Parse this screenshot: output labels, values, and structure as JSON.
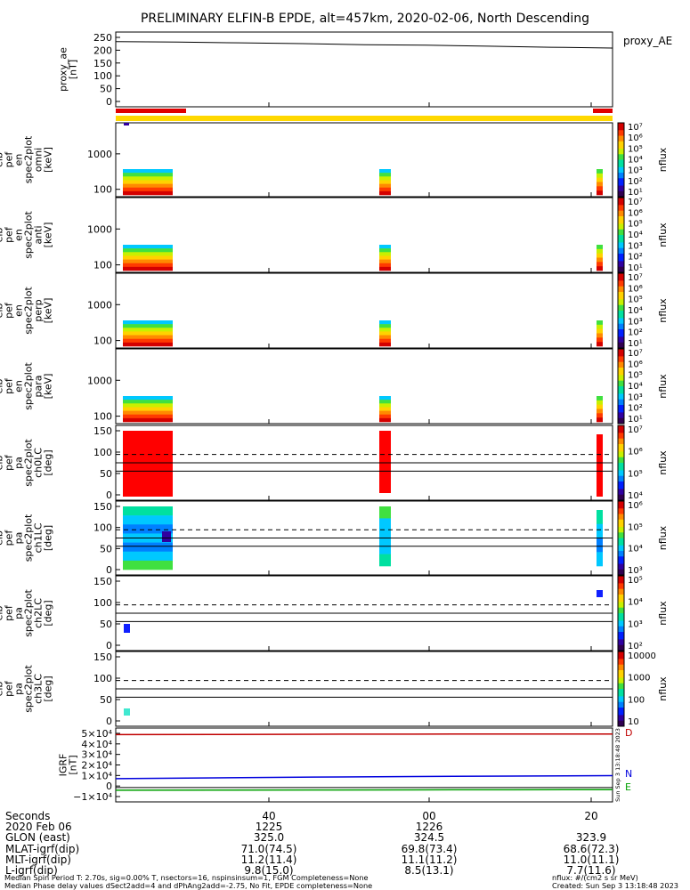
{
  "title": "PRELIMINARY ELFIN-B EPDE, alt=457km, 2020-02-06, North Descending",
  "chart_data": {
    "type": "heatmap",
    "panels": [
      {
        "id": "proxy_ae",
        "type": "line",
        "ylabel": [
          "proxy_ae",
          "[nT]"
        ],
        "legend": "proxy_AE",
        "yticks": [
          "250",
          "200",
          "150",
          "100",
          "50",
          "0"
        ],
        "ylim": [
          -25,
          265
        ],
        "series": [
          {
            "values": [
              228,
              226,
              223,
              220,
              216,
              214,
              210,
              206,
              203
            ]
          }
        ]
      },
      {
        "id": "spec_omni",
        "type": "spectrogram",
        "ylabel": [
          "elb",
          "pef",
          "en",
          "spec2plot",
          "omni",
          "[keV]"
        ],
        "yticks": [
          "1000",
          "100"
        ],
        "zlabel": "nflux",
        "zticks": [
          "10⁷",
          "10⁶",
          "10⁵",
          "10⁴",
          "10³",
          "10²",
          "10¹"
        ]
      },
      {
        "id": "spec_anti",
        "type": "spectrogram",
        "ylabel": [
          "elb",
          "pef",
          "en",
          "spec2plot",
          "anti",
          "[keV]"
        ],
        "yticks": [
          "1000",
          "100"
        ],
        "zlabel": "nflux",
        "zticks": [
          "10⁷",
          "10⁶",
          "10⁵",
          "10⁴",
          "10³",
          "10²",
          "10¹"
        ]
      },
      {
        "id": "spec_perp",
        "type": "spectrogram",
        "ylabel": [
          "elb",
          "pef",
          "en",
          "spec2plot",
          "perp",
          "[keV]"
        ],
        "yticks": [
          "1000",
          "100"
        ],
        "zlabel": "nflux",
        "zticks": [
          "10⁷",
          "10⁶",
          "10⁵",
          "10⁴",
          "10³",
          "10²",
          "10¹"
        ]
      },
      {
        "id": "spec_para",
        "type": "spectrogram",
        "ylabel": [
          "elb",
          "pef",
          "en",
          "spec2plot",
          "para",
          "[keV]"
        ],
        "yticks": [
          "1000",
          "100"
        ],
        "zlabel": "nflux",
        "zticks": [
          "10⁷",
          "10⁶",
          "10⁵",
          "10⁴",
          "10³",
          "10²",
          "10¹"
        ]
      },
      {
        "id": "pa_ch0",
        "type": "spectrogram",
        "ylabel": [
          "elb",
          "pef",
          "pa",
          "spec2plot",
          "ch0LC",
          "[deg]"
        ],
        "yticks": [
          "150",
          "100",
          "50",
          "0"
        ],
        "ylim": [
          0,
          180
        ],
        "zlabel": "nflux",
        "zticks": [
          "10⁷",
          "10⁶",
          "10⁵",
          "10⁴"
        ]
      },
      {
        "id": "pa_ch1",
        "type": "spectrogram",
        "ylabel": [
          "elb",
          "pef",
          "pa",
          "spec2plot",
          "ch1LC",
          "[deg]"
        ],
        "yticks": [
          "150",
          "100",
          "50",
          "0"
        ],
        "ylim": [
          0,
          180
        ],
        "zlabel": "nflux",
        "zticks": [
          "10⁶",
          "10⁵",
          "10⁴",
          "10³"
        ]
      },
      {
        "id": "pa_ch2",
        "type": "spectrogram",
        "ylabel": [
          "elb",
          "pef",
          "pa",
          "spec2plot",
          "ch2LC",
          "[deg]"
        ],
        "yticks": [
          "150",
          "100",
          "50",
          "0"
        ],
        "ylim": [
          0,
          180
        ],
        "zlabel": "nflux",
        "zticks": [
          "10⁵",
          "10⁴",
          "10³",
          "10²"
        ]
      },
      {
        "id": "pa_ch3",
        "type": "spectrogram",
        "ylabel": [
          "elb",
          "pef",
          "pa",
          "spec2plot",
          "ch3LC",
          "[deg]"
        ],
        "yticks": [
          "150",
          "100",
          "50",
          "0"
        ],
        "ylim": [
          0,
          180
        ],
        "zlabel": "nflux",
        "zticks": [
          "10000",
          "1000",
          "100",
          "10"
        ]
      },
      {
        "id": "igrf",
        "type": "line",
        "ylabel": [
          "IGRF",
          "[nT]"
        ],
        "yticks": [
          "5×10⁴",
          "4×10⁴",
          "3×10⁴",
          "2×10⁴",
          "1×10⁴",
          "0",
          "−1×10⁴"
        ],
        "ylim": [
          -12000,
          50000
        ],
        "legend": [
          "D",
          "N",
          "E"
        ],
        "series": [
          {
            "name": "D",
            "color": "#c00000",
            "values": [
              44500,
              44600,
              44800,
              44900,
              45000,
              45000
            ]
          },
          {
            "name": "N",
            "color": "#0000dd",
            "values": [
              7500,
              8200,
              8800,
              9300,
              9700,
              10000
            ]
          },
          {
            "name": "E",
            "color": "#00a000",
            "values": [
              -2200,
              -2100,
              -2000,
              -1900,
              -1800,
              -1700
            ]
          }
        ],
        "stamp": "Sun Sep  3 13:18:48 2023"
      }
    ],
    "xticks": [
      {
        "Seconds": "40",
        "date": "1225",
        "glon": "325.0",
        "mlat": "71.0(74.5)",
        "mlt": "11.2(11.4)",
        "l": "9.8(15.0)"
      },
      {
        "Seconds": "00",
        "date": "1226",
        "glon": "324.5",
        "mlat": "69.8(73.4)",
        "mlt": "11.1(11.2)",
        "l": "8.5(13.1)"
      },
      {
        "Seconds": "20",
        "date": "",
        "glon": "323.9",
        "mlat": "68.6(72.3)",
        "mlt": "11.0(11.1)",
        "l": "7.7(11.6)"
      }
    ]
  },
  "rowlabels": [
    "Seconds",
    "2020 Feb 06",
    "GLON (east)",
    "MLAT-igrf(dip)",
    "MLT-igrf(dip)",
    "L-igrf(dip)"
  ],
  "footer": {
    "line1_left": "Median Spin Period T: 2.70s, sig=0.00% T, nsectors=16, nspinsinsum=1, FGM Completeness=None",
    "line2_left": "Median Phase delay values dSect2add=4 and dPhAng2add=-2.75, No Fit, EPDE completeness=None",
    "line1_right": "nflux: #/(cm2 s sr MeV)",
    "line2_right": "Created: Sun Sep  3 13:18:48 2023"
  }
}
